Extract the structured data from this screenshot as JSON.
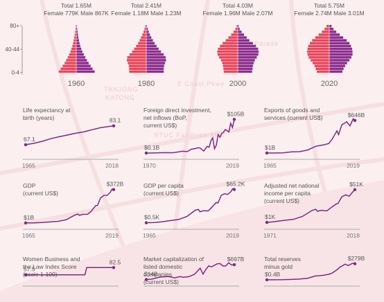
{
  "colors": {
    "female": "#e8475d",
    "male": "#8b2e8e",
    "line": "#7b2a80",
    "text": "#555555",
    "year": "#666666",
    "map_bg": "#fbeff0",
    "map_road": "#f6dfe1"
  },
  "map_labels": [
    "TANJONG",
    "KATONG",
    "NTUC FairPrice Xtra",
    "E Coast Pkwy",
    "Marine Parade"
  ],
  "pyramids": {
    "age_ticks": [
      "80+",
      "40-44",
      "0-4"
    ],
    "items": [
      {
        "year": "1960",
        "total_label": "Total",
        "total": "1.65M",
        "female_label": "Female",
        "female": "779K",
        "male_label": "Male",
        "male": "867K",
        "female_bars": [
          0.03,
          0.04,
          0.06,
          0.08,
          0.1,
          0.13,
          0.16,
          0.2,
          0.25,
          0.3,
          0.37,
          0.44,
          0.52,
          0.6,
          0.7,
          0.8,
          0.9
        ],
        "male_bars": [
          0.03,
          0.05,
          0.07,
          0.09,
          0.11,
          0.14,
          0.17,
          0.21,
          0.26,
          0.32,
          0.39,
          0.47,
          0.55,
          0.64,
          0.74,
          0.84,
          0.95
        ]
      },
      {
        "year": "1980",
        "total_label": "Total",
        "total": "2.41M",
        "female_label": "Female",
        "female": "1.18M",
        "male_label": "Male",
        "male": "1.23M",
        "female_bars": [
          0.05,
          0.09,
          0.14,
          0.2,
          0.27,
          0.34,
          0.42,
          0.52,
          0.62,
          0.73,
          0.86,
          0.98,
          1.0,
          0.95,
          0.9,
          0.88,
          0.88
        ],
        "male_bars": [
          0.04,
          0.08,
          0.13,
          0.19,
          0.26,
          0.34,
          0.43,
          0.53,
          0.64,
          0.76,
          0.9,
          1.0,
          1.02,
          0.97,
          0.92,
          0.9,
          0.9
        ]
      },
      {
        "year": "2000",
        "total_label": "Total",
        "total": "4.03M",
        "female_label": "Female",
        "female": "1.96M",
        "male_label": "Male",
        "male": "2.07M",
        "female_bars": [
          0.06,
          0.12,
          0.22,
          0.34,
          0.48,
          0.62,
          0.78,
          0.92,
          1.02,
          1.06,
          1.04,
          0.96,
          0.86,
          0.8,
          0.76,
          0.74,
          0.72
        ],
        "male_bars": [
          0.05,
          0.1,
          0.2,
          0.32,
          0.46,
          0.6,
          0.78,
          0.94,
          1.05,
          1.08,
          1.06,
          0.98,
          0.88,
          0.82,
          0.78,
          0.76,
          0.74
        ]
      },
      {
        "year": "2020",
        "total_label": "Total",
        "total": "5.75M",
        "female_label": "Female",
        "female": "2.74M",
        "male_label": "Male",
        "male": "3.01M",
        "female_bars": [
          0.14,
          0.24,
          0.38,
          0.55,
          0.72,
          0.88,
          1.0,
          1.08,
          1.12,
          1.14,
          1.12,
          1.06,
          0.96,
          0.86,
          0.76,
          0.7,
          0.64
        ],
        "male_bars": [
          0.12,
          0.22,
          0.36,
          0.54,
          0.72,
          0.9,
          1.04,
          1.12,
          1.18,
          1.2,
          1.2,
          1.14,
          1.04,
          0.92,
          0.82,
          0.74,
          0.68
        ]
      }
    ]
  },
  "chart_data": [
    {
      "type": "line",
      "title": "Life expectancy at birth (years)",
      "title_lines": [
        "Life expectancy at",
        "birth (years)"
      ],
      "x_start": "1965",
      "x_end": "2018",
      "start_label": "67.1",
      "end_label": "83.1",
      "x": [
        1965,
        1970,
        1975,
        1980,
        1985,
        1990,
        1995,
        2000,
        2005,
        2010,
        2015,
        2018
      ],
      "y": [
        67.1,
        68.3,
        70.0,
        72.2,
        73.8,
        75.3,
        76.8,
        78.0,
        79.8,
        81.5,
        82.6,
        83.1
      ],
      "ylim": [
        60,
        90
      ]
    },
    {
      "type": "line",
      "title": "Foreign direct investment, net inflows (BoP, current US$)",
      "title_lines": [
        "Foreign direct investment,",
        "net inflows (BoP,",
        "current US$)"
      ],
      "x_start": "1970",
      "x_end": "2019",
      "start_label": "$0.1B",
      "end_label": "$105B",
      "x": [
        1970,
        1975,
        1980,
        1985,
        1990,
        1993,
        1995,
        1997,
        1999,
        2000,
        2002,
        2004,
        2005,
        2006,
        2007,
        2008,
        2009,
        2010,
        2011,
        2012,
        2013,
        2014,
        2015,
        2016,
        2017,
        2018,
        2019
      ],
      "y": [
        0.1,
        0.6,
        1.2,
        1.1,
        5.6,
        4.7,
        11.9,
        13.8,
        16.6,
        15.5,
        6.2,
        21.0,
        18.1,
        38.1,
        47.4,
        13.6,
        24.9,
        57.5,
        49.2,
        61.2,
        64.4,
        73.3,
        69.8,
        66.1,
        92.8,
        79.5,
        105
      ],
      "ylim": [
        0,
        110
      ]
    },
    {
      "type": "line",
      "title": "Exports of goods and services (current US$)",
      "title_lines": [
        "Exports of goods and",
        "services (current US$)"
      ],
      "x_start": "1965",
      "x_end": "2019",
      "start_label": "$1B",
      "end_label": "$646B",
      "x": [
        1965,
        1970,
        1975,
        1980,
        1985,
        1990,
        1995,
        2000,
        2003,
        2005,
        2008,
        2009,
        2011,
        2014,
        2016,
        2018,
        2019
      ],
      "y": [
        1,
        1.8,
        6,
        24,
        28,
        60,
        135,
        165,
        190,
        275,
        440,
        365,
        560,
        620,
        540,
        680,
        646
      ],
      "ylim": [
        0,
        700
      ]
    },
    {
      "type": "line",
      "title": "GDP (current US$)",
      "title_lines": [
        "GDP",
        "(current US$)"
      ],
      "x_start": "1965",
      "x_end": "2019",
      "start_label": "$1B",
      "end_label": "$372B",
      "x": [
        1965,
        1970,
        1975,
        1980,
        1985,
        1990,
        1995,
        1997,
        1998,
        2000,
        2003,
        2005,
        2008,
        2009,
        2011,
        2013,
        2015,
        2017,
        2018,
        2019
      ],
      "y": [
        1,
        2,
        6,
        12,
        19,
        38,
        87,
        100,
        85,
        96,
        97,
        127,
        193,
        194,
        280,
        307,
        308,
        343,
        376,
        372
      ],
      "ylim": [
        0,
        400
      ]
    },
    {
      "type": "line",
      "title": "GDP per capita (current US$)",
      "title_lines": [
        "GDP per capita",
        "(current US$)"
      ],
      "x_start": "1965",
      "x_end": "2019",
      "start_label": "$0.5K",
      "end_label": "$65.2K",
      "x": [
        1965,
        1970,
        1975,
        1980,
        1985,
        1990,
        1995,
        1997,
        1998,
        2000,
        2003,
        2005,
        2008,
        2009,
        2011,
        2013,
        2015,
        2017,
        2018,
        2019
      ],
      "y": [
        0.5,
        0.9,
        2.5,
        4.9,
        7.0,
        12.8,
        24.9,
        26.4,
        21.8,
        23.9,
        23.6,
        29.9,
        40.0,
        38.9,
        53.9,
        56.9,
        55.6,
        61.2,
        66.7,
        65.2
      ],
      "ylim": [
        0,
        70
      ]
    },
    {
      "type": "line",
      "title": "Adjusted net national income per capita (current US$)",
      "title_lines": [
        "Adjusted net national",
        "income per capita",
        "(current US$)"
      ],
      "x_start": "1971",
      "x_end": "2018",
      "start_label": "$1K",
      "end_label": "$51K",
      "x": [
        1971,
        1975,
        1980,
        1985,
        1990,
        1995,
        1997,
        1998,
        2000,
        2003,
        2005,
        2008,
        2009,
        2011,
        2013,
        2015,
        2017,
        2018
      ],
      "y": [
        1,
        2.1,
        4,
        5.5,
        10,
        19,
        21,
        18,
        19.5,
        18.5,
        23,
        29,
        30,
        40,
        43,
        41,
        48,
        51
      ],
      "ylim": [
        0,
        55
      ]
    },
    {
      "type": "line",
      "title": "Women Business and the Law Index Score (scale 1-100)",
      "title_lines": [
        "Women Business and",
        "the Law Index Score",
        "(scale 1-100)"
      ],
      "x_start": "",
      "x_end": "",
      "start_label": "57.5",
      "end_label": "82.5",
      "x": [
        1970,
        1975,
        1980,
        1985,
        1990,
        1995,
        2000,
        2003,
        2004,
        2005,
        2010,
        2015,
        2019
      ],
      "y": [
        57.5,
        57.5,
        57.5,
        57.5,
        57.5,
        57.5,
        57.5,
        57.5,
        82.5,
        82.5,
        82.5,
        82.5,
        82.5
      ],
      "ylim": [
        40,
        100
      ]
    },
    {
      "type": "line",
      "title": "Market capitalization of listed domestic companies (current US$)",
      "title_lines": [
        "Market capitalization of",
        "listed domestic",
        "companies",
        "(current US$)"
      ],
      "x_start": "",
      "x_end": "",
      "start_label": "$14B",
      "end_label": "$697B",
      "x": [
        1988,
        1990,
        1993,
        1996,
        1998,
        2000,
        2001,
        2003,
        2005,
        2007,
        2008,
        2009,
        2010,
        2011,
        2013,
        2014,
        2015,
        2016,
        2017,
        2018,
        2019
      ],
      "y": [
        14,
        34,
        132,
        150,
        94,
        152,
        117,
        148,
        257,
        539,
        265,
        481,
        646,
        598,
        744,
        753,
        640,
        640,
        787,
        687,
        697
      ],
      "ylim": [
        0,
        800
      ]
    },
    {
      "type": "line",
      "title": "Total reserves minus gold",
      "title_lines": [
        "Total reserves",
        "minus gold"
      ],
      "x_start": "",
      "x_end": "",
      "start_label": "$0.4B",
      "end_label": "$279B",
      "x": [
        1965,
        1970,
        1975,
        1980,
        1985,
        1990,
        1995,
        1997,
        2000,
        2003,
        2005,
        2008,
        2010,
        2011,
        2013,
        2015,
        2017,
        2018,
        2019
      ],
      "y": [
        0.4,
        1.0,
        3.0,
        6.6,
        12.8,
        27.7,
        68.7,
        71.3,
        80.1,
        95.7,
        116,
        174,
        225,
        237,
        273,
        247,
        280,
        287,
        279
      ],
      "ylim": [
        0,
        300
      ]
    }
  ]
}
